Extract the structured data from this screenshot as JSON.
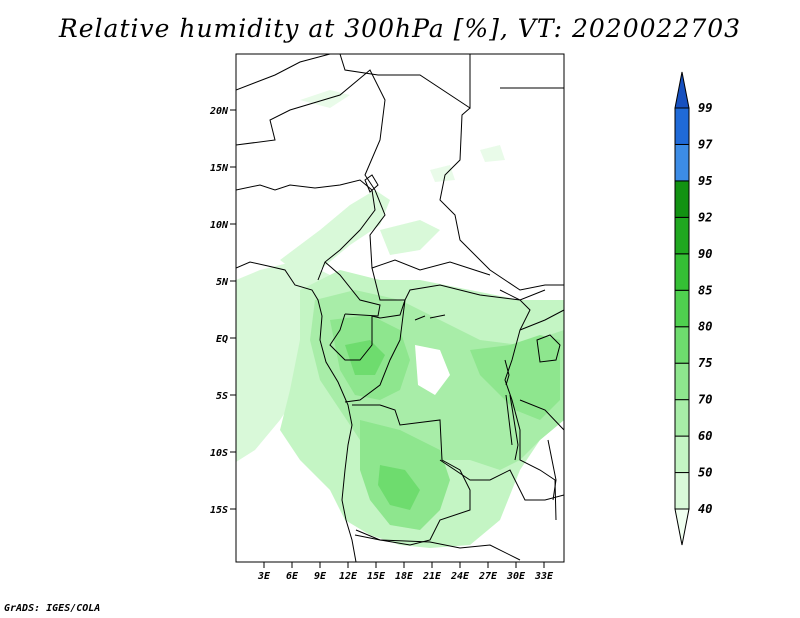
{
  "title": "Relative humidity at 300hPa [%], VT: 2020022703",
  "credit": "GrADS: IGES/COLA",
  "map": {
    "lat_ticks": [
      "20N",
      "15N",
      "10N",
      "5N",
      "EQ",
      "5S",
      "10S",
      "15S"
    ],
    "lon_ticks": [
      "3E",
      "6E",
      "9E",
      "12E",
      "15E",
      "18E",
      "21E",
      "24E",
      "27E",
      "30E",
      "33E"
    ]
  },
  "colorbar": {
    "levels": [
      "40",
      "50",
      "60",
      "70",
      "75",
      "80",
      "85",
      "90",
      "92",
      "95",
      "97",
      "99"
    ],
    "colors": [
      "#f0fff0",
      "#d9f9d9",
      "#c4f5c4",
      "#a8eda8",
      "#8ee68e",
      "#6edc6e",
      "#4fd04f",
      "#35bf35",
      "#20a820",
      "#129212",
      "#3c8ce6",
      "#1f6ad8",
      "#1650bf"
    ]
  }
}
